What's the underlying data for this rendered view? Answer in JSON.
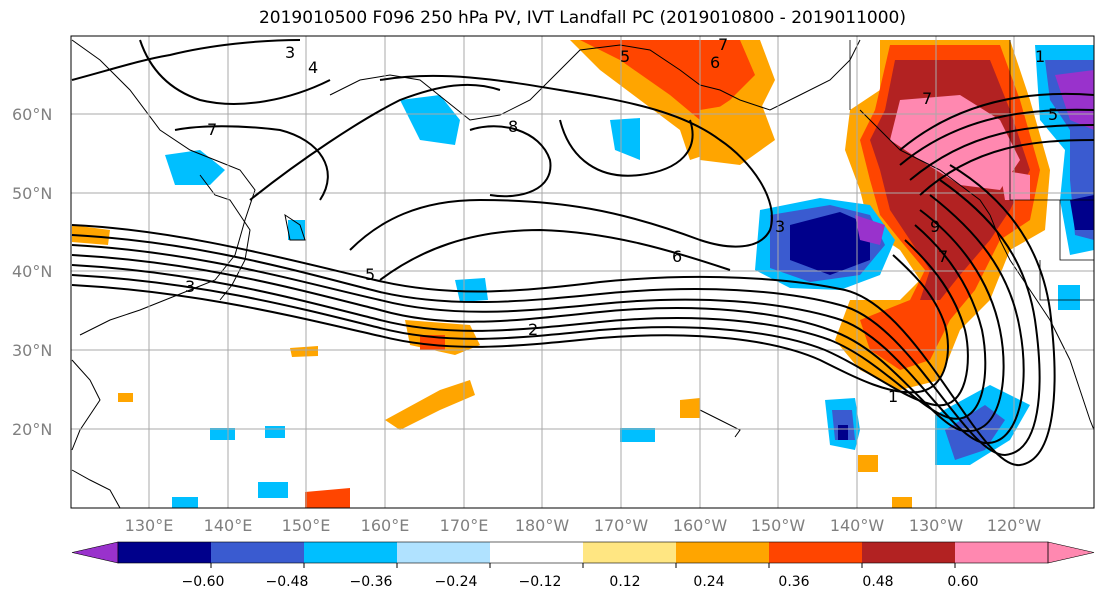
{
  "title": "2019010500 F096 250 hPa PV, IVT Landfall PC (2019010800 - 2019011000)",
  "map": {
    "lat_labels": [
      "60°N",
      "50°N",
      "40°N",
      "30°N",
      "20°N"
    ],
    "lon_labels": [
      "130°E",
      "140°E",
      "150°E",
      "160°E",
      "170°E",
      "180°W",
      "170°W",
      "160°W",
      "150°W",
      "140°W",
      "130°W",
      "120°W"
    ],
    "contour_labels": [
      "3",
      "4",
      "5",
      "7",
      "7",
      "8",
      "6",
      "5",
      "3",
      "1",
      "2",
      "6",
      "9",
      "7",
      "3",
      "1",
      "5",
      "7"
    ]
  },
  "colorbar": {
    "tick_labels": [
      "−0.60",
      "−0.48",
      "−0.36",
      "−0.24",
      "−0.12",
      "0.12",
      "0.24",
      "0.36",
      "0.48",
      "0.60"
    ],
    "colors": [
      "#9932cc",
      "#00008b",
      "#3a5bd0",
      "#00bfff",
      "#b0e2ff",
      "#ffffff",
      "#ffe682",
      "#ffa500",
      "#ff4500",
      "#b22222",
      "#ff88b0",
      "#ff88b0"
    ]
  },
  "colors": {
    "grid": "#a9a9a9",
    "contour": "#000000",
    "axis_label": "#808080"
  }
}
